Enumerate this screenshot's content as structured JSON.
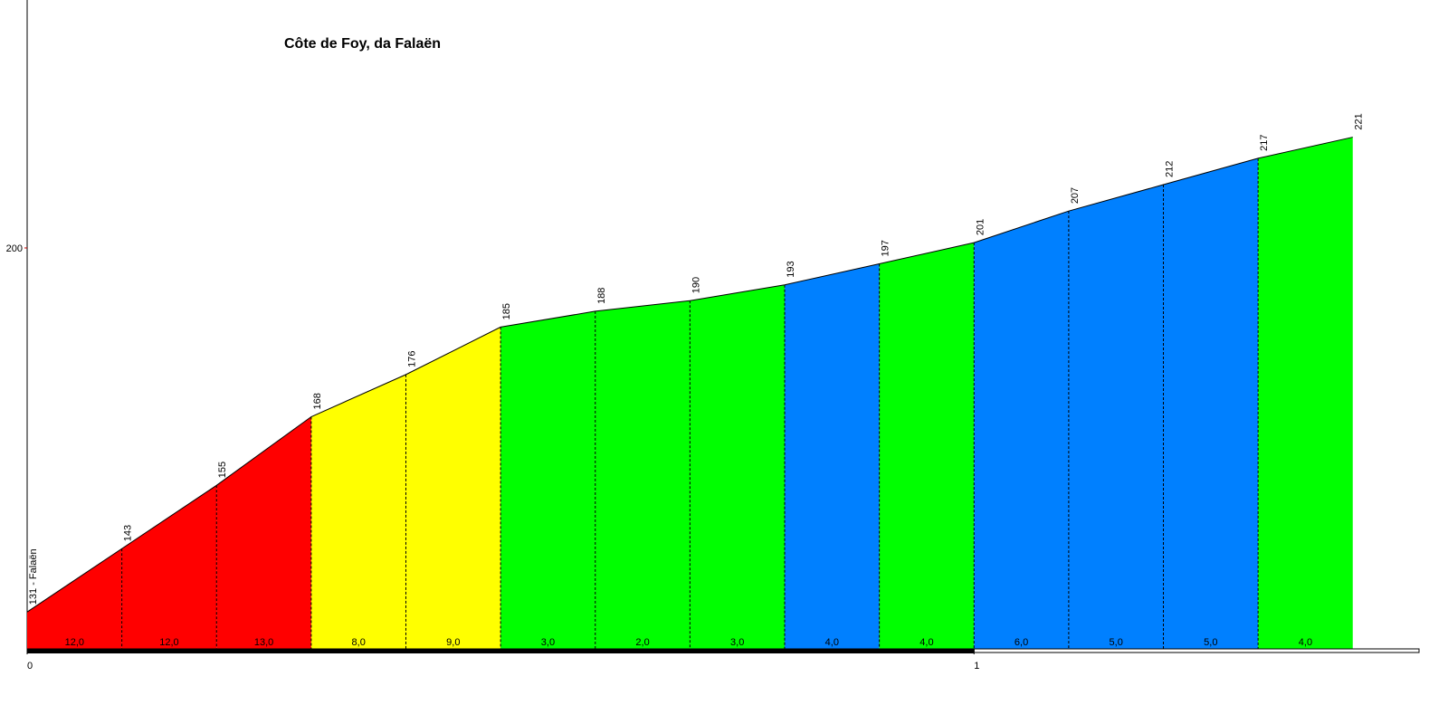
{
  "chart_data": {
    "type": "area",
    "title": "Côte de Foy, da Falaën",
    "x": [
      0,
      0.1,
      0.2,
      0.3,
      0.4,
      0.5,
      0.6,
      0.7,
      0.8,
      0.9,
      1.0,
      1.1,
      1.2,
      1.3,
      1.4
    ],
    "values": [
      131,
      143,
      155,
      168,
      176,
      185,
      188,
      190,
      193,
      197,
      201,
      207,
      212,
      217,
      221
    ],
    "value_labels": [
      "131 - Falaën",
      "143",
      "155",
      "168",
      "176",
      "185",
      "188",
      "190",
      "193",
      "197",
      "201",
      "207",
      "212",
      "217",
      "221"
    ],
    "segments": {
      "values": [
        12.0,
        12.0,
        13.0,
        8.0,
        9.0,
        3.0,
        2.0,
        3.0,
        4.0,
        4.0,
        6.0,
        5.0,
        5.0,
        4.0
      ],
      "value_labels": [
        "12,0",
        "12,0",
        "13,0",
        "8,0",
        "9,0",
        "3,0",
        "2,0",
        "3,0",
        "4,0",
        "4,0",
        "6,0",
        "5,0",
        "5,0",
        "4,0"
      ],
      "colors": [
        "#ff0000",
        "#ff0000",
        "#ff0000",
        "#ffff00",
        "#ffff00",
        "#00ff00",
        "#00ff00",
        "#00ff00",
        "#0080ff",
        "#00ff00",
        "#0080ff",
        "#0080ff",
        "#0080ff",
        "#00ff00"
      ]
    },
    "xlim": [
      0,
      1.47
    ],
    "ylim": [
      124,
      247
    ],
    "xticks": [
      0,
      1
    ],
    "yticks": [
      200
    ]
  }
}
